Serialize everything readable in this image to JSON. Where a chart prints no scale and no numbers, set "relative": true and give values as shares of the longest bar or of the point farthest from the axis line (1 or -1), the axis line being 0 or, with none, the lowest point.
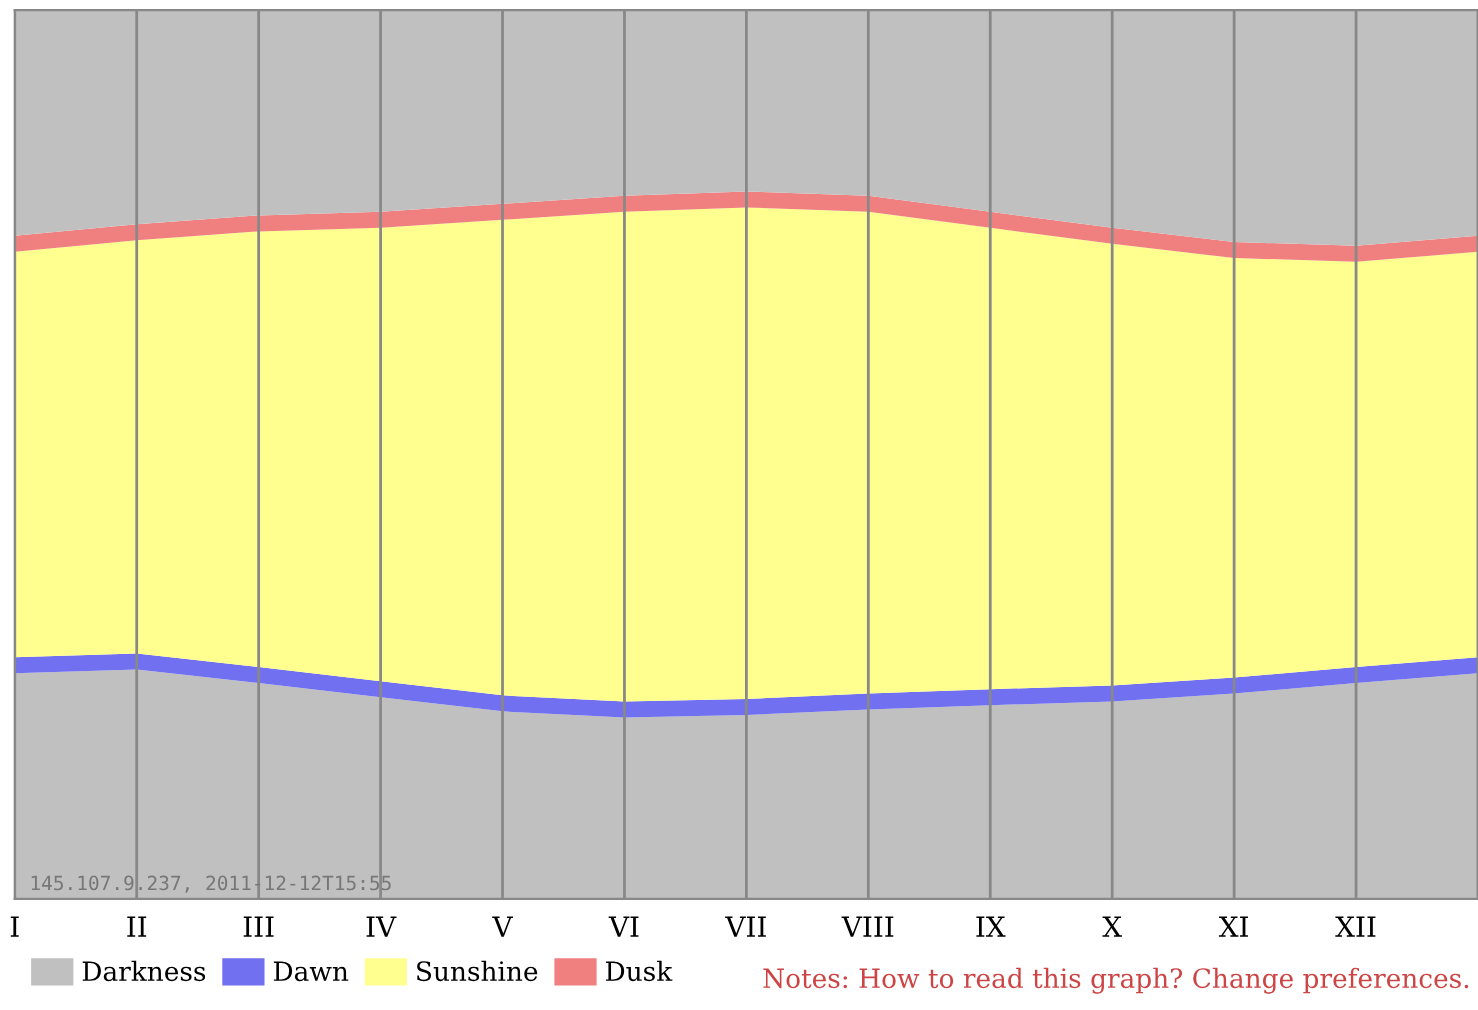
{
  "chart_data": {
    "type": "area",
    "stacked": true,
    "relative": true,
    "categories": [
      "I",
      "II",
      "III",
      "IV",
      "V",
      "VI",
      "VII",
      "VIII",
      "IX",
      "X",
      "XI",
      "XII",
      null
    ],
    "series": [
      {
        "name": "Darkness",
        "color": "#c0c0c0",
        "values": [
          0.254,
          0.258,
          0.243,
          0.227,
          0.211,
          0.204,
          0.207,
          0.213,
          0.218,
          0.222,
          0.231,
          0.243,
          0.254
        ]
      },
      {
        "name": "Dawn",
        "color": "#7070f0",
        "values": [
          0.018,
          0.018,
          0.018,
          0.018,
          0.018,
          0.018,
          0.018,
          0.018,
          0.018,
          0.018,
          0.018,
          0.018,
          0.018
        ]
      },
      {
        "name": "Sunshine",
        "color": "#ffff90",
        "values": [
          0.456,
          0.465,
          0.49,
          0.51,
          0.535,
          0.551,
          0.553,
          0.542,
          0.519,
          0.497,
          0.472,
          0.456,
          0.456
        ]
      },
      {
        "name": "Dusk",
        "color": "#f08080",
        "values": [
          0.018,
          0.018,
          0.018,
          0.018,
          0.018,
          0.018,
          0.018,
          0.018,
          0.018,
          0.018,
          0.018,
          0.018,
          0.018
        ]
      },
      {
        "color": "#c0c0c0",
        "values": [
          0.254,
          0.24,
          0.231,
          0.227,
          0.218,
          0.209,
          0.204,
          0.209,
          0.227,
          0.245,
          0.261,
          0.265,
          0.254
        ]
      }
    ],
    "grid": "x",
    "legend": "bottom",
    "annotations": [
      "Notes: How to read this graph? Change preferences.",
      "145.107.9.237, 2011-12-12T15:55"
    ]
  }
}
